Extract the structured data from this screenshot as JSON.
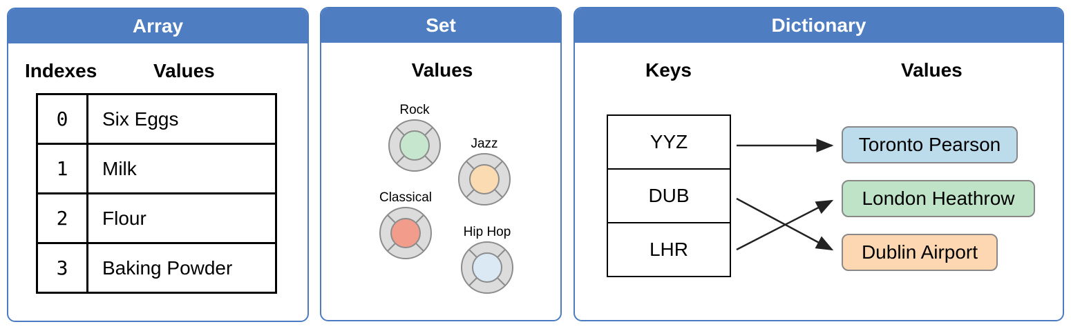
{
  "array": {
    "title": "Array",
    "indexes_heading": "Indexes",
    "values_heading": "Values",
    "rows": [
      {
        "index": "0",
        "value": "Six Eggs"
      },
      {
        "index": "1",
        "value": "Milk"
      },
      {
        "index": "2",
        "value": "Flour"
      },
      {
        "index": "3",
        "value": "Baking Powder"
      }
    ]
  },
  "set": {
    "title": "Set",
    "values_heading": "Values",
    "items": [
      {
        "label": "Rock",
        "color": "#c6e6cd"
      },
      {
        "label": "Jazz",
        "color": "#fbdbb2"
      },
      {
        "label": "Classical",
        "color": "#f29c8c"
      },
      {
        "label": "Hip Hop",
        "color": "#dbe9f4"
      }
    ]
  },
  "dictionary": {
    "title": "Dictionary",
    "keys_heading": "Keys",
    "values_heading": "Values",
    "keys": [
      "YYZ",
      "DUB",
      "LHR"
    ],
    "values": [
      {
        "label": "Toronto Pearson",
        "color": "#bcdcec"
      },
      {
        "label": "London Heathrow",
        "color": "#bfe3c6"
      },
      {
        "label": "Dublin Airport",
        "color": "#fdd7b2"
      }
    ],
    "mappings": [
      {
        "key": "YYZ",
        "value": "Toronto Pearson"
      },
      {
        "key": "DUB",
        "value": "Dublin Airport"
      },
      {
        "key": "LHR",
        "value": "London Heathrow"
      }
    ]
  },
  "colors": {
    "header_blue": "#4e7dc1",
    "panel_border": "#4a7bc2"
  }
}
